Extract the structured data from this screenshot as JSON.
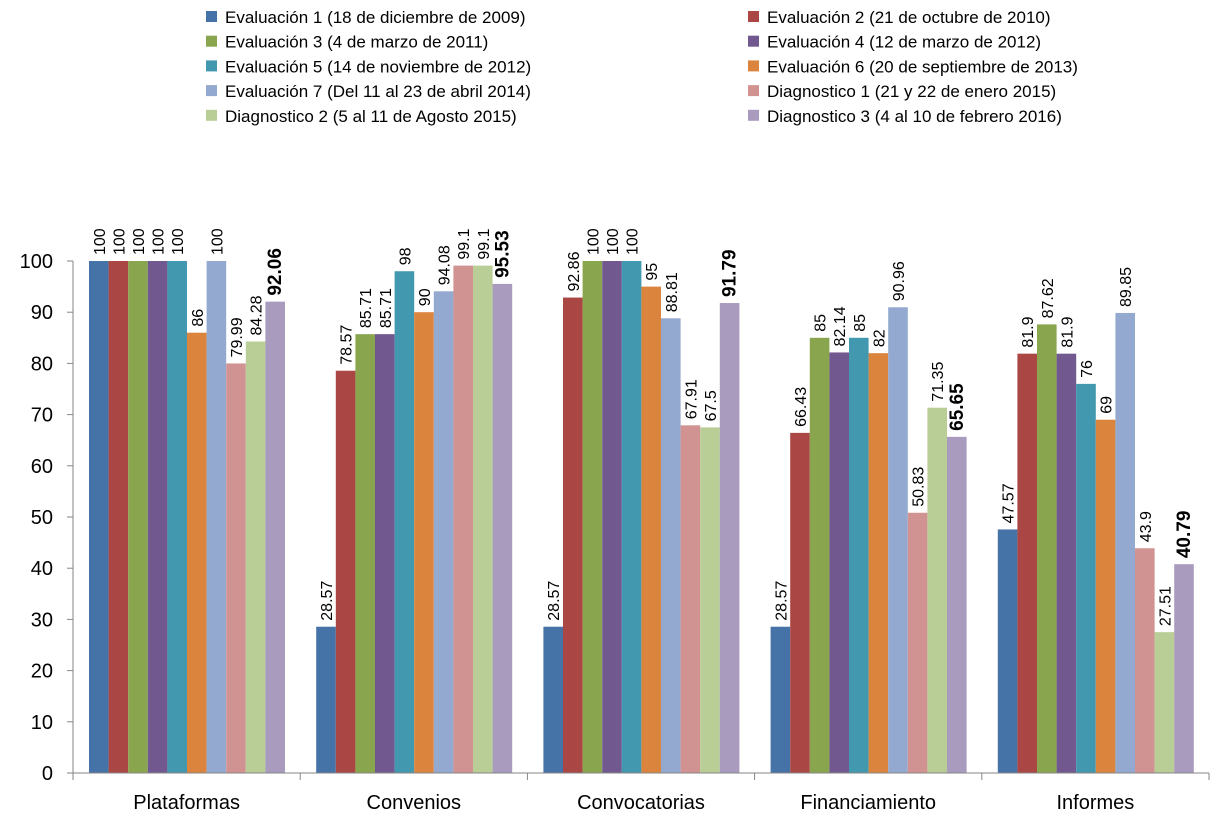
{
  "chart_data": {
    "type": "bar",
    "title": "",
    "xlabel": "",
    "ylabel": "",
    "ylim": [
      0,
      100
    ],
    "yticks": [
      "0",
      "10",
      "20",
      "30",
      "40",
      "50",
      "60",
      "70",
      "80",
      "90",
      "100"
    ],
    "grid": false,
    "legend_position": "top",
    "categories": [
      "Plataformas",
      "Convenios",
      "Convocatorias",
      "Financiamiento",
      "Informes"
    ],
    "series": [
      {
        "name": "Evaluación 1 (18 de diciembre de 2009)",
        "color": "#4572A7",
        "values": [
          100,
          28.57,
          28.57,
          28.57,
          47.57
        ],
        "labels": [
          "100",
          "28.57",
          "28.57",
          "28.57",
          "47.57"
        ],
        "bold": false
      },
      {
        "name": "Evaluación 2 (21 de octubre de 2010)",
        "color": "#AA4643",
        "values": [
          100,
          78.57,
          92.86,
          66.43,
          81.9
        ],
        "labels": [
          "100",
          "78.57",
          "92.86",
          "66.43",
          "81.9"
        ],
        "bold": false
      },
      {
        "name": "Evaluación 3 (4 de marzo de 2011)",
        "color": "#89A54E",
        "values": [
          100,
          85.71,
          100,
          85,
          87.62
        ],
        "labels": [
          "100",
          "85.71",
          "100",
          "85",
          "87.62"
        ],
        "bold": false
      },
      {
        "name": "Evaluación 4 (12 de marzo de 2012)",
        "color": "#71588F",
        "values": [
          100,
          85.71,
          100,
          82.14,
          81.9
        ],
        "labels": [
          "100",
          "85.71",
          "100",
          "82.14",
          "81.9"
        ],
        "bold": false
      },
      {
        "name": "Evaluación 5 (14 de noviembre de 2012)",
        "color": "#4198AF",
        "values": [
          100,
          98,
          100,
          85,
          76
        ],
        "labels": [
          "100",
          "98",
          "100",
          "85",
          "76"
        ],
        "bold": false
      },
      {
        "name": "Evaluación 6 (20 de septiembre de 2013)",
        "color": "#DB843D",
        "values": [
          86,
          90,
          95,
          82,
          69
        ],
        "labels": [
          "86",
          "90",
          "95",
          "82",
          "69"
        ],
        "bold": false
      },
      {
        "name": "Evaluación 7 (Del 11 al 23 de abril 2014)",
        "color": "#93A9CF",
        "values": [
          100,
          94.08,
          88.81,
          90.96,
          89.85
        ],
        "labels": [
          "100",
          "94.08",
          "88.81",
          "90.96",
          "89.85"
        ],
        "bold": false
      },
      {
        "name": "Diagnostico 1 (21 y 22 de enero 2015)",
        "color": "#D19392",
        "values": [
          79.99,
          99.1,
          67.91,
          50.83,
          43.9
        ],
        "labels": [
          "79.99",
          "99.1",
          "67.91",
          "50.83",
          "43.9"
        ],
        "bold": false
      },
      {
        "name": "Diagnostico 2 (5 al 11 de Agosto 2015)",
        "color": "#B9CD96",
        "values": [
          84.28,
          99.1,
          67.5,
          71.35,
          27.51
        ],
        "labels": [
          "84.28",
          "99.1",
          "67.5",
          "71.35",
          "27.51"
        ],
        "bold": false
      },
      {
        "name": "Diagnostico 3 (4 al 10 de febrero 2016)",
        "color": "#A99BBD",
        "values": [
          92.06,
          95.53,
          91.79,
          65.65,
          40.79
        ],
        "labels": [
          "92.06",
          "95.53",
          "91.79",
          "65.65",
          "40.79"
        ],
        "bold": true
      }
    ]
  }
}
